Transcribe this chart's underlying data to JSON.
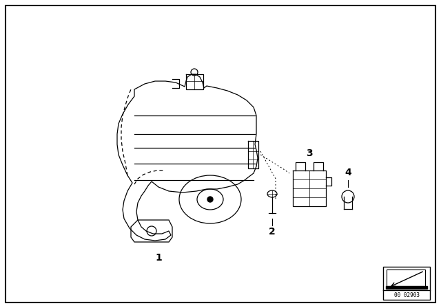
{
  "bg_color": "#ffffff",
  "fg_color": "#000000",
  "border_lw": 1.5,
  "main_lw": 0.9,
  "label_fontsize": 10,
  "catalog_number": "00 02903",
  "catalog_fontsize": 5.5,
  "fig_w": 6.4,
  "fig_h": 4.48,
  "dpi": 100
}
